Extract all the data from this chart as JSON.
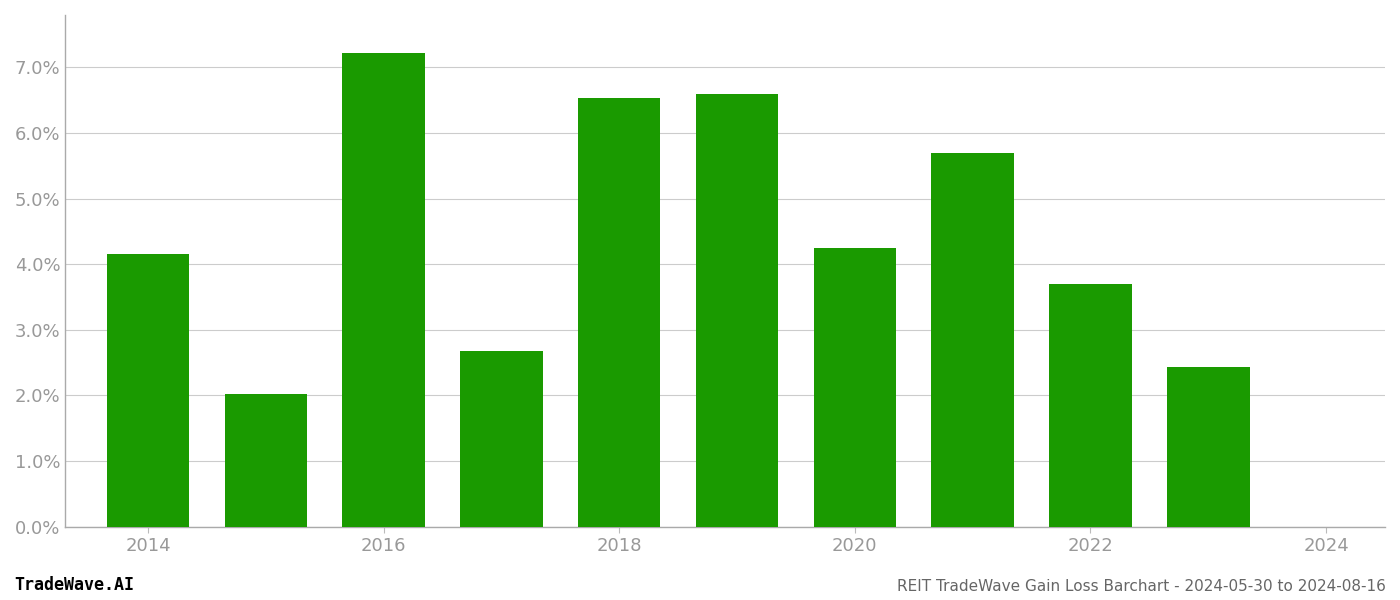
{
  "years": [
    2014,
    2015,
    2016,
    2017,
    2018,
    2019,
    2020,
    2021,
    2022,
    2023
  ],
  "values": [
    0.0415,
    0.0202,
    0.0722,
    0.0267,
    0.0653,
    0.066,
    0.0425,
    0.057,
    0.037,
    0.0243
  ],
  "bar_color": "#1a9a00",
  "background_color": "#ffffff",
  "grid_color": "#cccccc",
  "tick_label_color": "#999999",
  "ylim": [
    0.0,
    0.078
  ],
  "yticks": [
    0.0,
    0.01,
    0.02,
    0.03,
    0.04,
    0.05,
    0.06,
    0.07
  ],
  "xticks": [
    2014,
    2016,
    2018,
    2020,
    2022,
    2024
  ],
  "xlim": [
    2013.3,
    2024.5
  ],
  "footer_left": "TradeWave.AI",
  "footer_right": "REIT TradeWave Gain Loss Barchart - 2024-05-30 to 2024-08-16",
  "bar_width": 0.7
}
